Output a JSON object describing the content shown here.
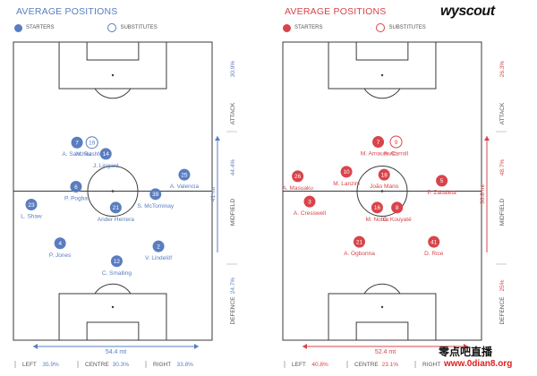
{
  "brand": "wyscout",
  "colors": {
    "blue": "#5a7dc0",
    "red": "#d9444b",
    "pitch_line": "#3a3a3a",
    "text": "#555555"
  },
  "chart_data": [
    {
      "type": "scatter",
      "title": "AVERAGE POSITIONS",
      "color": "#5a7dc0",
      "legend": {
        "starters": "STARTERS",
        "substitutes": "SUBSTITUTES"
      },
      "zones": [
        {
          "name": "ATTACK",
          "pct": "30.9%"
        },
        {
          "name": "MIDFIELD",
          "pct": "44.4%"
        },
        {
          "name": "DEFENCE",
          "pct": "24.7%"
        }
      ],
      "width_label": "54.4 mt",
      "depth_label": "41 mt",
      "bottom": [
        {
          "label": "LEFT",
          "pct": "35.9%"
        },
        {
          "label": "CENTRE",
          "pct": "30.3%"
        },
        {
          "label": "RIGHT",
          "pct": "33.8%"
        }
      ],
      "players": [
        {
          "num": "7",
          "name": "A. Sánchez",
          "x": 0.32,
          "y": 0.337,
          "sub": false
        },
        {
          "num": "19",
          "name": "M. Rashford",
          "x": 0.395,
          "y": 0.337,
          "sub": true
        },
        {
          "num": "14",
          "name": "J. Lingard",
          "x": 0.465,
          "y": 0.375,
          "sub": false
        },
        {
          "num": "6",
          "name": "P. Pogba",
          "x": 0.315,
          "y": 0.485,
          "sub": false
        },
        {
          "num": "25",
          "name": "A. Valencia",
          "x": 0.86,
          "y": 0.445,
          "sub": false
        },
        {
          "num": "39",
          "name": "S. McTominay",
          "x": 0.715,
          "y": 0.51,
          "sub": false
        },
        {
          "num": "21",
          "name": "Ander Herrera",
          "x": 0.515,
          "y": 0.555,
          "sub": false
        },
        {
          "num": "23",
          "name": "L. Shaw",
          "x": 0.09,
          "y": 0.545,
          "sub": false
        },
        {
          "num": "4",
          "name": "P. Jones",
          "x": 0.235,
          "y": 0.675,
          "sub": false
        },
        {
          "num": "2",
          "name": "V. Lindelöf",
          "x": 0.73,
          "y": 0.685,
          "sub": false
        },
        {
          "num": "12",
          "name": "C. Smalling",
          "x": 0.52,
          "y": 0.735,
          "sub": false
        }
      ]
    },
    {
      "type": "scatter",
      "title": "AVERAGE POSITIONS",
      "color": "#d9444b",
      "legend": {
        "starters": "STARTERS",
        "substitutes": "SUBSTITUTES"
      },
      "zones": [
        {
          "name": "ATTACK",
          "pct": "26.3%"
        },
        {
          "name": "MIDFIELD",
          "pct": "48.7%"
        },
        {
          "name": "DEFENCE",
          "pct": "25%"
        }
      ],
      "width_label": "52.4 mt",
      "depth_label": "36.8 mt",
      "bottom": [
        {
          "label": "LEFT",
          "pct": "40.8%"
        },
        {
          "label": "CENTRE",
          "pct": "23.1%"
        },
        {
          "label": "RIGHT",
          "pct": ""
        }
      ],
      "players": [
        {
          "num": "7",
          "name": "M. Arnautović",
          "x": 0.48,
          "y": 0.335,
          "sub": false
        },
        {
          "num": "9",
          "name": "A. Carroll",
          "x": 0.57,
          "y": 0.335,
          "sub": true
        },
        {
          "num": "10",
          "name": "M. Lanzini",
          "x": 0.32,
          "y": 0.435,
          "sub": false
        },
        {
          "num": "18",
          "name": "João Mário",
          "x": 0.51,
          "y": 0.445,
          "sub": false
        },
        {
          "num": "26",
          "name": "A. Masuaku",
          "x": 0.075,
          "y": 0.45,
          "sub": false
        },
        {
          "num": "5",
          "name": "P. Zabaleta",
          "x": 0.8,
          "y": 0.465,
          "sub": false
        },
        {
          "num": "3",
          "name": "A. Cresswell",
          "x": 0.135,
          "y": 0.535,
          "sub": false
        },
        {
          "num": "16",
          "name": "M. Noble",
          "x": 0.475,
          "y": 0.555,
          "sub": false
        },
        {
          "num": "8",
          "name": "C. Kouyaté",
          "x": 0.575,
          "y": 0.555,
          "sub": false
        },
        {
          "num": "21",
          "name": "A. Ogbonna",
          "x": 0.385,
          "y": 0.67,
          "sub": false
        },
        {
          "num": "41",
          "name": "D. Rice",
          "x": 0.76,
          "y": 0.67,
          "sub": false
        }
      ]
    }
  ],
  "watermark": {
    "line1": "零点吧直播",
    "line2": "www.0dian8.org"
  }
}
